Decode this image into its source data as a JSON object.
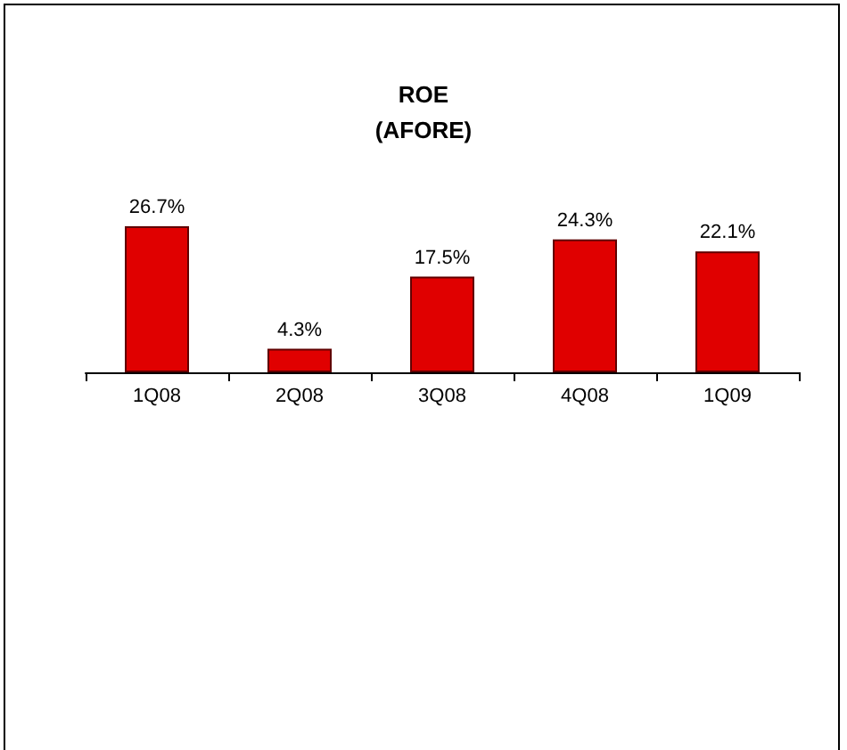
{
  "chart_data": {
    "type": "bar",
    "title": "ROE\n(AFORE)",
    "categories": [
      "1Q08",
      "2Q08",
      "3Q08",
      "4Q08",
      "1Q09"
    ],
    "values": [
      26.7,
      4.3,
      17.5,
      24.3,
      22.1
    ],
    "value_labels": [
      "26.7%",
      "4.3%",
      "17.5%",
      "24.3%",
      "22.1%"
    ],
    "color": "#e00000"
  }
}
